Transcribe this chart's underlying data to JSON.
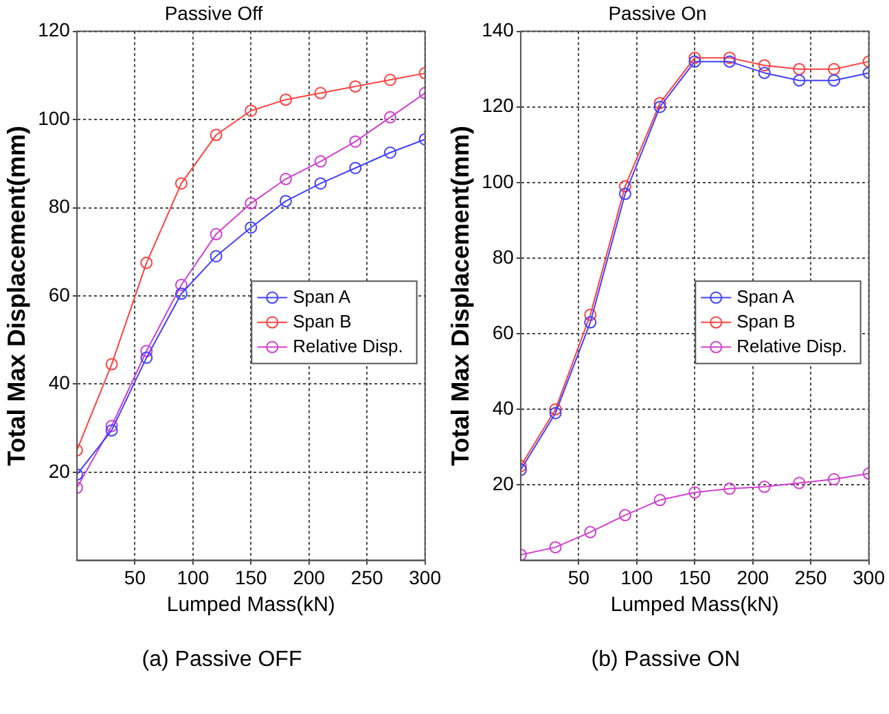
{
  "chart_data": [
    {
      "type": "line",
      "title": "Passive Off",
      "xlabel": "Lumped Mass(kN)",
      "ylabel": "Total Max Displacement(mm)",
      "annotations": [
        "(a) Passive OFF"
      ],
      "x": [
        0,
        30,
        60,
        90,
        120,
        150,
        180,
        210,
        240,
        270,
        300
      ],
      "xlim": [
        0,
        300
      ],
      "xticks": [
        50,
        100,
        150,
        200,
        250,
        300
      ],
      "ylim": [
        0,
        120
      ],
      "yticks": [
        20,
        40,
        60,
        80,
        100,
        120
      ],
      "grid": true,
      "legend": "right",
      "marker": "circle",
      "line_style": "solid",
      "series": [
        {
          "name": "Span A",
          "color": "#4040ff",
          "values": [
            19.5,
            29.5,
            46,
            60.5,
            69,
            75.5,
            81.5,
            85.5,
            89,
            92.5,
            95.5
          ]
        },
        {
          "name": "Span B",
          "color": "#ff4040",
          "values": [
            25,
            44.5,
            67.5,
            85.5,
            96.5,
            102,
            104.5,
            106,
            107.5,
            109,
            110.5
          ]
        },
        {
          "name": "Relative Disp.",
          "color": "#d040d0",
          "values": [
            16.5,
            30.5,
            47.5,
            62.5,
            74,
            81,
            86.5,
            90.5,
            95,
            100.5,
            106
          ]
        }
      ]
    },
    {
      "type": "line",
      "title": "Passive On",
      "xlabel": "Lumped Mass(kN)",
      "ylabel": "Total Max Displacement(mm)",
      "annotations": [
        "(b) Passive ON"
      ],
      "x": [
        0,
        30,
        60,
        90,
        120,
        150,
        180,
        210,
        240,
        270,
        300
      ],
      "xlim": [
        0,
        300
      ],
      "xticks": [
        50,
        100,
        150,
        200,
        250,
        300
      ],
      "ylim": [
        0,
        140
      ],
      "yticks": [
        20,
        40,
        60,
        80,
        100,
        120,
        140
      ],
      "grid": true,
      "legend": "right",
      "marker": "circle",
      "line_style": "solid",
      "series": [
        {
          "name": "Span A",
          "color": "#4040ff",
          "values": [
            24,
            39,
            63,
            97,
            120,
            132,
            132,
            129,
            127,
            127,
            129
          ]
        },
        {
          "name": "Span B",
          "color": "#ff4040",
          "values": [
            25,
            40,
            65,
            99,
            121,
            133,
            133,
            131,
            130,
            130,
            132
          ]
        },
        {
          "name": "Relative Disp.",
          "color": "#d040d0",
          "values": [
            1.5,
            3.5,
            7.5,
            12,
            16,
            18,
            19,
            19.5,
            20.5,
            21.5,
            23
          ]
        }
      ]
    }
  ]
}
